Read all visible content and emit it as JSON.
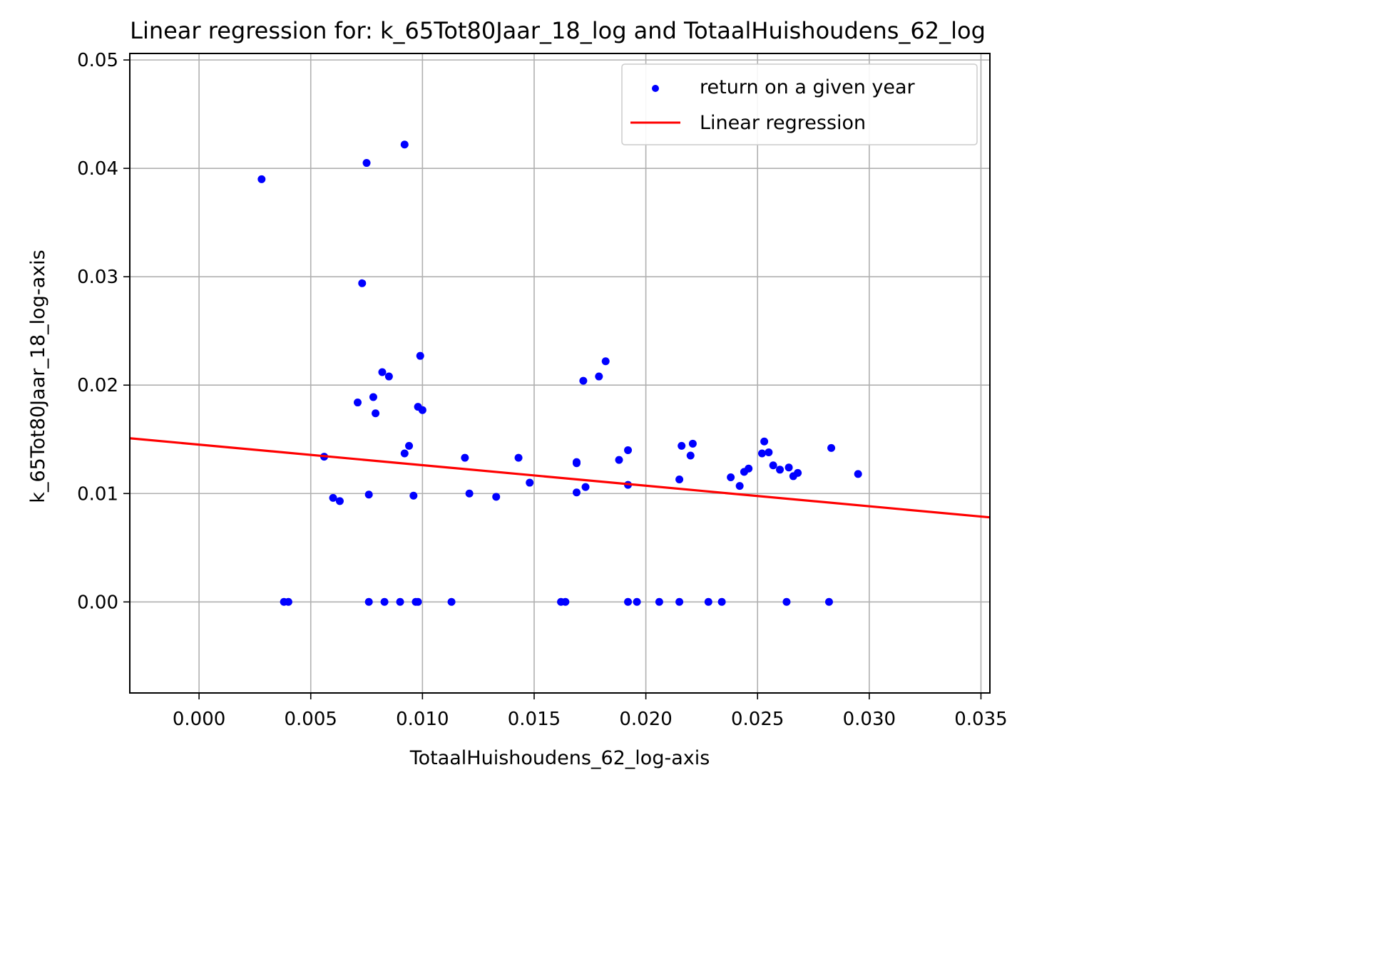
{
  "chart_data": {
    "type": "scatter",
    "title": "Linear regression for: k_65Tot80Jaar_18_log and TotaalHuishoudens_62_log",
    "xlabel": "TotaalHuishoudens_62_log-axis",
    "ylabel": "k_65Tot80Jaar_18_log-axis",
    "xlim": [
      -0.0031,
      0.0354
    ],
    "ylim": [
      -0.0084,
      0.0506
    ],
    "xticks": [
      0.0,
      0.005,
      0.01,
      0.015,
      0.02,
      0.025,
      0.03,
      0.035
    ],
    "xtick_labels": [
      "0.000",
      "0.005",
      "0.010",
      "0.015",
      "0.020",
      "0.025",
      "0.030",
      "0.035"
    ],
    "yticks": [
      0.0,
      0.01,
      0.02,
      0.03,
      0.04,
      0.05
    ],
    "ytick_labels": [
      "0.00",
      "0.01",
      "0.02",
      "0.03",
      "0.04",
      "0.05"
    ],
    "grid": true,
    "legend_position": "top-right",
    "series": [
      {
        "name": "return on a given year",
        "kind": "scatter",
        "color": "#0000ff",
        "points": [
          [
            0.0028,
            0.039
          ],
          [
            0.0075,
            0.0405
          ],
          [
            0.0092,
            0.0422
          ],
          [
            0.0073,
            0.0294
          ],
          [
            0.0056,
            0.0134
          ],
          [
            0.006,
            0.0096
          ],
          [
            0.0063,
            0.0093
          ],
          [
            0.0071,
            0.0184
          ],
          [
            0.0076,
            0.0099
          ],
          [
            0.0078,
            0.0189
          ],
          [
            0.0079,
            0.0174
          ],
          [
            0.0082,
            0.0212
          ],
          [
            0.0085,
            0.0208
          ],
          [
            0.0092,
            0.0137
          ],
          [
            0.0094,
            0.0144
          ],
          [
            0.0096,
            0.0098
          ],
          [
            0.0098,
            0.018
          ],
          [
            0.0099,
            0.0227
          ],
          [
            0.01,
            0.0177
          ],
          [
            0.0119,
            0.0133
          ],
          [
            0.0121,
            0.01
          ],
          [
            0.0133,
            0.0097
          ],
          [
            0.0143,
            0.0133
          ],
          [
            0.0148,
            0.011
          ],
          [
            0.0169,
            0.0101
          ],
          [
            0.0169,
            0.0129
          ],
          [
            0.0169,
            0.0128
          ],
          [
            0.0172,
            0.0204
          ],
          [
            0.0173,
            0.0106
          ],
          [
            0.0179,
            0.0208
          ],
          [
            0.0182,
            0.0222
          ],
          [
            0.0188,
            0.0131
          ],
          [
            0.0192,
            0.014
          ],
          [
            0.0192,
            0.0108
          ],
          [
            0.0215,
            0.0113
          ],
          [
            0.0216,
            0.0144
          ],
          [
            0.022,
            0.0135
          ],
          [
            0.0221,
            0.0146
          ],
          [
            0.0238,
            0.0115
          ],
          [
            0.0242,
            0.0107
          ],
          [
            0.0244,
            0.012
          ],
          [
            0.0246,
            0.0123
          ],
          [
            0.0252,
            0.0137
          ],
          [
            0.0253,
            0.0148
          ],
          [
            0.0255,
            0.0138
          ],
          [
            0.0257,
            0.0126
          ],
          [
            0.026,
            0.0122
          ],
          [
            0.0264,
            0.0124
          ],
          [
            0.0266,
            0.0116
          ],
          [
            0.0268,
            0.0119
          ],
          [
            0.0283,
            0.0142
          ],
          [
            0.0295,
            0.0118
          ],
          [
            0.0038,
            0.0
          ],
          [
            0.004,
            0.0
          ],
          [
            0.0076,
            0.0
          ],
          [
            0.0083,
            0.0
          ],
          [
            0.009,
            0.0
          ],
          [
            0.0097,
            0.0
          ],
          [
            0.0098,
            0.0
          ],
          [
            0.0113,
            0.0
          ],
          [
            0.0162,
            0.0
          ],
          [
            0.0164,
            0.0
          ],
          [
            0.0192,
            0.0
          ],
          [
            0.0196,
            0.0
          ],
          [
            0.0206,
            0.0
          ],
          [
            0.0215,
            0.0
          ],
          [
            0.0228,
            0.0
          ],
          [
            0.0234,
            0.0
          ],
          [
            0.0263,
            0.0
          ],
          [
            0.0282,
            0.0
          ]
        ]
      },
      {
        "name": "Linear regression",
        "kind": "line",
        "color": "#ff0000",
        "x": [
          -0.0031,
          0.0354
        ],
        "y": [
          0.0151,
          0.0078
        ]
      }
    ]
  }
}
